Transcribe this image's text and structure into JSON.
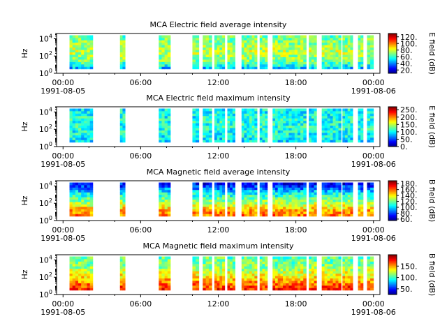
{
  "chart_data": [
    {
      "type": "heatmap",
      "title": "MCA  Electric field average intensity",
      "ylabel": "Hz",
      "yscale": "log",
      "ylim": [
        1,
        40000
      ],
      "yticks": [
        {
          "exp": "0",
          "value": 1
        },
        {
          "exp": "2",
          "value": 100
        },
        {
          "exp": "4",
          "value": 10000
        }
      ],
      "x_range_hours": [
        -0.5,
        24.5
      ],
      "xticks": [
        {
          "hour": 0,
          "label": "00:00"
        },
        {
          "hour": 6,
          "label": "06:00"
        },
        {
          "hour": 12,
          "label": "12:00"
        },
        {
          "hour": 18,
          "label": "18:00"
        },
        {
          "hour": 24,
          "label": "00:00"
        }
      ],
      "date_labels": [
        {
          "hour": 0,
          "label": "1991-08-05"
        },
        {
          "hour": 24,
          "label": "1991-08-06"
        }
      ],
      "colorbar": {
        "label": "E field (dB)",
        "range": [
          10,
          130
        ],
        "ticks": [
          {
            "value": 20,
            "label": "20."
          },
          {
            "value": 40,
            "label": "40."
          },
          {
            "value": 60,
            "label": "60."
          },
          {
            "value": 80,
            "label": "80."
          },
          {
            "value": 100,
            "label": "100."
          },
          {
            "value": 120,
            "label": "120."
          }
        ]
      },
      "data_intervals_hours": [
        [
          0.5,
          2.3
        ],
        [
          4.4,
          4.8
        ],
        [
          7.4,
          8.3
        ],
        [
          10.0,
          10.5
        ],
        [
          10.8,
          11.5
        ],
        [
          11.7,
          12.5
        ],
        [
          12.7,
          13.3
        ],
        [
          13.8,
          15.0
        ],
        [
          15.2,
          15.8
        ],
        [
          16.2,
          17.0
        ],
        [
          17.0,
          18.8
        ],
        [
          19.0,
          19.6
        ],
        [
          20.0,
          21.5
        ],
        [
          21.6,
          22.4
        ],
        [
          22.8,
          23.2
        ],
        [
          23.5,
          24.0
        ]
      ],
      "freq_profile": [
        {
          "log10_hz": 0.5,
          "db": 45
        },
        {
          "log10_hz": 1.5,
          "db": 70
        },
        {
          "log10_hz": 2.5,
          "db": 78
        },
        {
          "log10_hz": 3.5,
          "db": 72
        },
        {
          "log10_hz": 4.4,
          "db": 65
        }
      ]
    },
    {
      "type": "heatmap",
      "title": "MCA  Electric field maximum intensity",
      "ylabel": "Hz",
      "yscale": "log",
      "ylim": [
        1,
        40000
      ],
      "yticks": [
        {
          "exp": "0",
          "value": 1
        },
        {
          "exp": "2",
          "value": 100
        },
        {
          "exp": "4",
          "value": 10000
        }
      ],
      "x_range_hours": [
        -0.5,
        24.5
      ],
      "xticks": [
        {
          "hour": 0,
          "label": "00:00"
        },
        {
          "hour": 6,
          "label": "06:00"
        },
        {
          "hour": 12,
          "label": "12:00"
        },
        {
          "hour": 18,
          "label": "18:00"
        },
        {
          "hour": 24,
          "label": "00:00"
        }
      ],
      "date_labels": [
        {
          "hour": 0,
          "label": "1991-08-05"
        },
        {
          "hour": 24,
          "label": "1991-08-06"
        }
      ],
      "colorbar": {
        "label": "E field (dB)",
        "range": [
          0,
          270
        ],
        "ticks": [
          {
            "value": 0,
            "label": "0."
          },
          {
            "value": 50,
            "label": "50."
          },
          {
            "value": 100,
            "label": "100."
          },
          {
            "value": 150,
            "label": "150."
          },
          {
            "value": 200,
            "label": "200."
          },
          {
            "value": 250,
            "label": "250."
          }
        ]
      },
      "data_intervals_hours": [
        [
          0.5,
          2.3
        ],
        [
          4.4,
          4.8
        ],
        [
          7.4,
          8.3
        ],
        [
          10.0,
          10.5
        ],
        [
          10.8,
          11.5
        ],
        [
          11.7,
          12.5
        ],
        [
          12.7,
          13.3
        ],
        [
          13.8,
          15.0
        ],
        [
          15.2,
          15.8
        ],
        [
          16.2,
          17.0
        ],
        [
          17.0,
          18.8
        ],
        [
          19.0,
          19.6
        ],
        [
          20.0,
          21.5
        ],
        [
          21.6,
          22.4
        ],
        [
          22.8,
          23.2
        ],
        [
          23.5,
          24.0
        ]
      ],
      "freq_profile": [
        {
          "log10_hz": 0.5,
          "db": 95
        },
        {
          "log10_hz": 1.5,
          "db": 105
        },
        {
          "log10_hz": 2.5,
          "db": 110
        },
        {
          "log10_hz": 3.5,
          "db": 105
        },
        {
          "log10_hz": 4.4,
          "db": 100
        }
      ]
    },
    {
      "type": "heatmap",
      "title": "MCA  Magnetic field average intensity",
      "ylabel": "Hz",
      "yscale": "log",
      "ylim": [
        1,
        40000
      ],
      "yticks": [
        {
          "exp": "0",
          "value": 1
        },
        {
          "exp": "2",
          "value": 100
        },
        {
          "exp": "4",
          "value": 10000
        }
      ],
      "x_range_hours": [
        -0.5,
        24.5
      ],
      "xticks": [
        {
          "hour": 0,
          "label": "00:00"
        },
        {
          "hour": 6,
          "label": "06:00"
        },
        {
          "hour": 12,
          "label": "12:00"
        },
        {
          "hour": 18,
          "label": "18:00"
        },
        {
          "hour": 24,
          "label": "00:00"
        }
      ],
      "date_labels": [
        {
          "hour": 0,
          "label": "1991-08-05"
        },
        {
          "hour": 24,
          "label": "1991-08-06"
        }
      ],
      "colorbar": {
        "label": "B field (dB)",
        "range": [
          55,
          190
        ],
        "ticks": [
          {
            "value": 60,
            "label": "60."
          },
          {
            "value": 80,
            "label": "80."
          },
          {
            "value": 100,
            "label": "100."
          },
          {
            "value": 120,
            "label": "120."
          },
          {
            "value": 140,
            "label": "140."
          },
          {
            "value": 160,
            "label": "160."
          },
          {
            "value": 180,
            "label": "180."
          }
        ]
      },
      "data_intervals_hours": [
        [
          0.5,
          2.3
        ],
        [
          4.4,
          4.8
        ],
        [
          7.4,
          8.3
        ],
        [
          10.0,
          10.5
        ],
        [
          10.8,
          11.5
        ],
        [
          11.7,
          12.5
        ],
        [
          12.7,
          13.3
        ],
        [
          13.8,
          15.0
        ],
        [
          15.2,
          15.8
        ],
        [
          16.2,
          17.0
        ],
        [
          17.0,
          18.8
        ],
        [
          19.0,
          19.6
        ],
        [
          20.0,
          21.5
        ],
        [
          21.6,
          22.4
        ],
        [
          22.8,
          23.2
        ],
        [
          23.5,
          24.0
        ]
      ],
      "freq_profile": [
        {
          "log10_hz": 0.5,
          "db": 160
        },
        {
          "log10_hz": 1.2,
          "db": 150
        },
        {
          "log10_hz": 1.8,
          "db": 135
        },
        {
          "log10_hz": 2.5,
          "db": 120
        },
        {
          "log10_hz": 3.2,
          "db": 105
        },
        {
          "log10_hz": 3.8,
          "db": 85
        },
        {
          "log10_hz": 4.4,
          "db": 70
        }
      ]
    },
    {
      "type": "heatmap",
      "title": "MCA  Magnetic field maximum intensity",
      "ylabel": "Hz",
      "yscale": "log",
      "ylim": [
        1,
        40000
      ],
      "yticks": [
        {
          "exp": "0",
          "value": 1
        },
        {
          "exp": "2",
          "value": 100
        },
        {
          "exp": "4",
          "value": 10000
        }
      ],
      "x_range_hours": [
        -0.5,
        24.5
      ],
      "xticks": [
        {
          "hour": 0,
          "label": "00:00"
        },
        {
          "hour": 6,
          "label": "06:00"
        },
        {
          "hour": 12,
          "label": "12:00"
        },
        {
          "hour": 18,
          "label": "18:00"
        },
        {
          "hour": 24,
          "label": "00:00"
        }
      ],
      "date_labels": [
        {
          "hour": 0,
          "label": "1991-08-05"
        },
        {
          "hour": 24,
          "label": "1991-08-06"
        }
      ],
      "colorbar": {
        "label": "B field (dB)",
        "range": [
          25,
          200
        ],
        "ticks": [
          {
            "value": 50,
            "label": "50."
          },
          {
            "value": 100,
            "label": "100."
          },
          {
            "value": 150,
            "label": "150."
          }
        ]
      },
      "data_intervals_hours": [
        [
          0.5,
          2.3
        ],
        [
          4.4,
          4.8
        ],
        [
          7.4,
          8.3
        ],
        [
          10.0,
          10.5
        ],
        [
          10.8,
          11.5
        ],
        [
          11.7,
          12.5
        ],
        [
          12.7,
          13.3
        ],
        [
          13.8,
          15.0
        ],
        [
          15.2,
          15.8
        ],
        [
          16.2,
          17.0
        ],
        [
          17.0,
          18.8
        ],
        [
          19.0,
          19.6
        ],
        [
          20.0,
          21.5
        ],
        [
          21.6,
          22.4
        ],
        [
          22.8,
          23.2
        ],
        [
          23.5,
          24.0
        ]
      ],
      "freq_profile": [
        {
          "log10_hz": 0.5,
          "db": 175
        },
        {
          "log10_hz": 1.2,
          "db": 160
        },
        {
          "log10_hz": 1.8,
          "db": 145
        },
        {
          "log10_hz": 2.5,
          "db": 130
        },
        {
          "log10_hz": 3.2,
          "db": 115
        },
        {
          "log10_hz": 3.8,
          "db": 110
        },
        {
          "log10_hz": 4.4,
          "db": 105
        }
      ]
    }
  ]
}
